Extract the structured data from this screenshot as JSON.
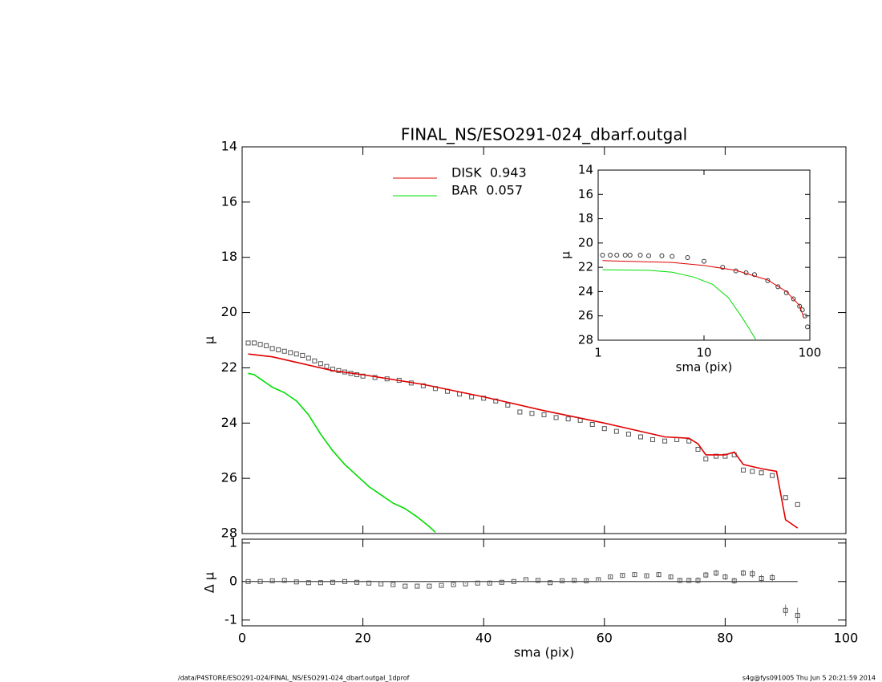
{
  "chart_data": [
    {
      "type": "line",
      "title": "FINAL_NS/ESO291-024_dbarf.outgal",
      "ylabel": "μ",
      "xlim": [
        0,
        100
      ],
      "xticks": [
        0,
        20,
        40,
        60,
        80,
        100
      ],
      "xtick_labels": false,
      "ylim": [
        28,
        14
      ],
      "yticks": [
        14,
        16,
        18,
        20,
        22,
        24,
        26,
        28
      ],
      "legend": "upper-center",
      "series": [
        {
          "marker": "square",
          "color": "#555555",
          "x": [
            1,
            2,
            3,
            4,
            5,
            6,
            7,
            8,
            9,
            10,
            11,
            12,
            13,
            14,
            15,
            16,
            17,
            18,
            19,
            20,
            22,
            24,
            26,
            28,
            30,
            32,
            34,
            36,
            38,
            40,
            42,
            44,
            46,
            48,
            50,
            52,
            54,
            56,
            58,
            60,
            62,
            64,
            66,
            68,
            70,
            72,
            74,
            75.5,
            76.8,
            78.5,
            80,
            81.5,
            83,
            84.5,
            86,
            87.8,
            90,
            92
          ],
          "values": [
            21.1,
            21.1,
            21.15,
            21.2,
            21.3,
            21.35,
            21.4,
            21.45,
            21.5,
            21.55,
            21.65,
            21.75,
            21.85,
            21.95,
            22.05,
            22.1,
            22.15,
            22.2,
            22.25,
            22.3,
            22.35,
            22.4,
            22.45,
            22.55,
            22.65,
            22.75,
            22.85,
            22.95,
            23.05,
            23.1,
            23.2,
            23.35,
            23.6,
            23.65,
            23.7,
            23.8,
            23.85,
            23.9,
            24.05,
            24.2,
            24.3,
            24.4,
            24.5,
            24.6,
            24.65,
            24.6,
            24.65,
            24.95,
            25.3,
            25.2,
            25.2,
            25.15,
            25.7,
            25.75,
            25.8,
            25.9,
            26.7,
            26.95
          ]
        },
        {
          "name": "DISK  0.943",
          "color": "#e00000",
          "x": [
            1,
            5,
            10,
            15,
            20,
            30,
            40,
            50,
            60,
            70,
            74,
            75.5,
            76.8,
            80,
            81.5,
            83,
            86,
            88.5,
            90,
            92
          ],
          "values": [
            21.5,
            21.6,
            21.85,
            22.1,
            22.25,
            22.6,
            23.05,
            23.55,
            24.0,
            24.5,
            24.55,
            24.75,
            25.15,
            25.15,
            25.05,
            25.5,
            25.65,
            25.75,
            27.5,
            27.8
          ]
        },
        {
          "name": "BAR  0.057",
          "color": "#00dd00",
          "x": [
            1,
            2,
            3,
            4,
            5,
            7,
            9,
            11,
            13,
            15,
            17,
            19,
            21,
            23,
            25,
            27,
            29,
            31,
            32
          ],
          "values": [
            22.2,
            22.25,
            22.4,
            22.55,
            22.7,
            22.9,
            23.2,
            23.7,
            24.4,
            25.0,
            25.5,
            25.9,
            26.3,
            26.6,
            26.9,
            27.1,
            27.4,
            27.75,
            27.95
          ]
        }
      ]
    },
    {
      "type": "scatter",
      "xlabel": "sma (pix)",
      "ylabel": "Δ μ",
      "xlim": [
        0,
        100
      ],
      "xticks": [
        0,
        20,
        40,
        60,
        80,
        100
      ],
      "xtick_labels": true,
      "ylim": [
        -1.15,
        1.1
      ],
      "yticks": [
        -1,
        0,
        1
      ],
      "hline": 0,
      "series": [
        {
          "marker": "square",
          "color": "#555555",
          "x": [
            1,
            3,
            5,
            7,
            9,
            11,
            13,
            15,
            17,
            19,
            21,
            23,
            25,
            27,
            29,
            31,
            33,
            35,
            37,
            39,
            41,
            43,
            45,
            47,
            49,
            51,
            53,
            55,
            57,
            59,
            61,
            63,
            65,
            67,
            69,
            71,
            72.5,
            74,
            75.5,
            76.8,
            78.5,
            80,
            81.5,
            83,
            84.5,
            86,
            87.8,
            90,
            92
          ],
          "values": [
            0,
            0,
            0.02,
            0.03,
            -0.01,
            -0.03,
            -0.03,
            -0.02,
            0,
            -0.02,
            -0.04,
            -0.06,
            -0.08,
            -0.12,
            -0.12,
            -0.12,
            -0.1,
            -0.08,
            -0.06,
            -0.04,
            -0.04,
            -0.02,
            0,
            0.05,
            0.03,
            -0.03,
            0.02,
            0.03,
            0.02,
            0.05,
            0.12,
            0.16,
            0.18,
            0.15,
            0.18,
            0.12,
            0.03,
            0.03,
            0.03,
            0.17,
            0.22,
            0.12,
            0.02,
            0.22,
            0.2,
            0.08,
            0.1,
            -0.75,
            -0.88
          ],
          "errors": [
            0.01,
            0.01,
            0.01,
            0.01,
            0.01,
            0.01,
            0.01,
            0.01,
            0.01,
            0.01,
            0.01,
            0.01,
            0.01,
            0.01,
            0.01,
            0.01,
            0.01,
            0.01,
            0.01,
            0.01,
            0.02,
            0.02,
            0.02,
            0.02,
            0.02,
            0.02,
            0.02,
            0.02,
            0.03,
            0.03,
            0.03,
            0.03,
            0.03,
            0.03,
            0.04,
            0.04,
            0.05,
            0.05,
            0.08,
            0.08,
            0.08,
            0.08,
            0.08,
            0.08,
            0.1,
            0.1,
            0.1,
            0.15,
            0.2
          ]
        }
      ]
    },
    {
      "type": "line",
      "xlabel": "sma (pix)",
      "ylabel": "μ",
      "xscale": "log",
      "xlim": [
        1,
        100
      ],
      "xticks": [
        1,
        10,
        100
      ],
      "xtick_labels": true,
      "ylim": [
        28,
        14
      ],
      "yticks": [
        14,
        16,
        18,
        20,
        22,
        24,
        26,
        28
      ],
      "series": [
        {
          "marker": "circle",
          "color": "#333333",
          "x": [
            1.1,
            1.3,
            1.5,
            1.8,
            2,
            2.5,
            3,
            4,
            5,
            7,
            10,
            15,
            20,
            25,
            30,
            40,
            50,
            60,
            70,
            80,
            85,
            90,
            95
          ],
          "values": [
            21.0,
            21.0,
            21.0,
            21.0,
            21.0,
            21.0,
            21.05,
            21.05,
            21.1,
            21.2,
            21.5,
            22.0,
            22.3,
            22.45,
            22.6,
            23.1,
            23.6,
            24.1,
            24.6,
            25.2,
            25.5,
            26.0,
            26.9
          ]
        },
        {
          "color": "#e00000",
          "x": [
            1.1,
            5,
            10,
            20,
            40,
            60,
            80,
            88
          ],
          "values": [
            21.45,
            21.6,
            21.85,
            22.25,
            23.05,
            24.0,
            25.15,
            26.2
          ]
        },
        {
          "color": "#00dd00",
          "x": [
            1.1,
            3,
            5,
            8,
            12,
            17,
            22,
            27,
            31
          ],
          "values": [
            22.2,
            22.25,
            22.4,
            22.8,
            23.4,
            24.5,
            25.9,
            27.1,
            28.0
          ]
        }
      ]
    }
  ],
  "footer": {
    "left": "/data/P4STORE/ESO291-024/FINAL_NS/ESO291-024_dbarf.outgal_1dprof",
    "right": "s4g@fys091005  Thu Jun  5 20:21:59 2014"
  }
}
